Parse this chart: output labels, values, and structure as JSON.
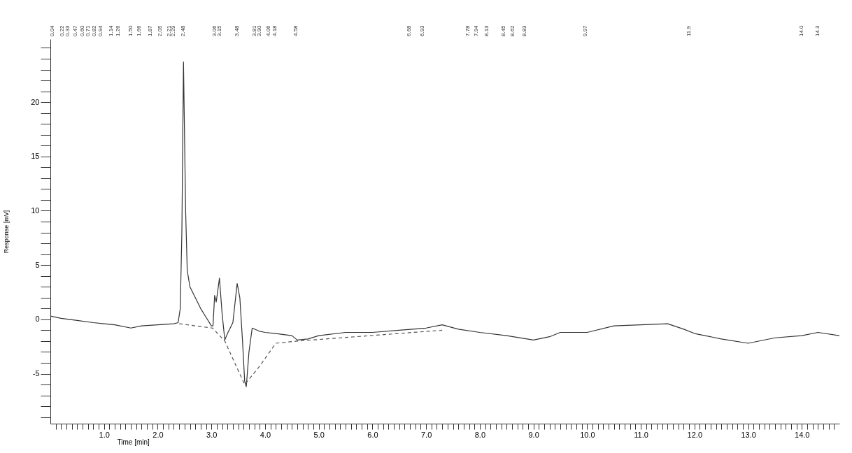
{
  "chart_data": {
    "type": "line",
    "xlabel": "Time [min]",
    "ylabel": "Response [mV]",
    "xlim": [
      0,
      14.7
    ],
    "ylim": [
      -9.6,
      25.8
    ],
    "grid": false,
    "marker": "none",
    "xticks": [
      {
        "value": 0.1,
        "label": null
      },
      {
        "value": 0.2,
        "label": null
      },
      {
        "value": 0.3,
        "label": null
      },
      {
        "value": 0.4,
        "label": null
      },
      {
        "value": 0.5,
        "label": null
      },
      {
        "value": 0.6,
        "label": null
      },
      {
        "value": 0.7,
        "label": null
      },
      {
        "value": 0.8,
        "label": null
      },
      {
        "value": 0.9,
        "label": null
      },
      {
        "value": 1,
        "label": "1.0"
      },
      {
        "value": 1.1,
        "label": null
      },
      {
        "value": 1.2,
        "label": null
      },
      {
        "value": 1.3,
        "label": null
      },
      {
        "value": 1.4,
        "label": null
      },
      {
        "value": 1.5,
        "label": null
      },
      {
        "value": 1.6,
        "label": null
      },
      {
        "value": 1.7,
        "label": null
      },
      {
        "value": 1.8,
        "label": null
      },
      {
        "value": 1.9,
        "label": null
      },
      {
        "value": 2,
        "label": "2.0"
      },
      {
        "value": 2.1,
        "label": null
      },
      {
        "value": 2.2,
        "label": null
      },
      {
        "value": 2.3,
        "label": null
      },
      {
        "value": 2.4,
        "label": null
      },
      {
        "value": 2.5,
        "label": null
      },
      {
        "value": 2.6,
        "label": null
      },
      {
        "value": 2.7,
        "label": null
      },
      {
        "value": 2.8,
        "label": null
      },
      {
        "value": 2.9,
        "label": null
      },
      {
        "value": 3,
        "label": "3.0"
      },
      {
        "value": 3.1,
        "label": null
      },
      {
        "value": 3.2,
        "label": null
      },
      {
        "value": 3.3,
        "label": null
      },
      {
        "value": 3.4,
        "label": null
      },
      {
        "value": 3.5,
        "label": null
      },
      {
        "value": 3.6,
        "label": null
      },
      {
        "value": 3.7,
        "label": null
      },
      {
        "value": 3.8,
        "label": null
      },
      {
        "value": 3.9,
        "label": null
      },
      {
        "value": 4,
        "label": "4.0"
      },
      {
        "value": 4.1,
        "label": null
      },
      {
        "value": 4.2,
        "label": null
      },
      {
        "value": 4.3,
        "label": null
      },
      {
        "value": 4.4,
        "label": null
      },
      {
        "value": 4.5,
        "label": null
      },
      {
        "value": 4.6,
        "label": null
      },
      {
        "value": 4.7,
        "label": null
      },
      {
        "value": 4.8,
        "label": null
      },
      {
        "value": 4.9,
        "label": null
      },
      {
        "value": 5,
        "label": "5.0"
      },
      {
        "value": 5.1,
        "label": null
      },
      {
        "value": 5.2,
        "label": null
      },
      {
        "value": 5.3,
        "label": null
      },
      {
        "value": 5.4,
        "label": null
      },
      {
        "value": 5.5,
        "label": null
      },
      {
        "value": 5.6,
        "label": null
      },
      {
        "value": 5.7,
        "label": null
      },
      {
        "value": 5.8,
        "label": null
      },
      {
        "value": 5.9,
        "label": null
      },
      {
        "value": 6,
        "label": "6.0"
      },
      {
        "value": 6.1,
        "label": null
      },
      {
        "value": 6.2,
        "label": null
      },
      {
        "value": 6.3,
        "label": null
      },
      {
        "value": 6.4,
        "label": null
      },
      {
        "value": 6.5,
        "label": null
      },
      {
        "value": 6.6,
        "label": null
      },
      {
        "value": 6.7,
        "label": null
      },
      {
        "value": 6.8,
        "label": null
      },
      {
        "value": 6.9,
        "label": null
      },
      {
        "value": 7,
        "label": "7.0"
      },
      {
        "value": 7.1,
        "label": null
      },
      {
        "value": 7.2,
        "label": null
      },
      {
        "value": 7.3,
        "label": null
      },
      {
        "value": 7.4,
        "label": null
      },
      {
        "value": 7.5,
        "label": null
      },
      {
        "value": 7.6,
        "label": null
      },
      {
        "value": 7.7,
        "label": null
      },
      {
        "value": 7.8,
        "label": null
      },
      {
        "value": 7.9,
        "label": null
      },
      {
        "value": 8,
        "label": "8.0"
      },
      {
        "value": 8.1,
        "label": null
      },
      {
        "value": 8.2,
        "label": null
      },
      {
        "value": 8.3,
        "label": null
      },
      {
        "value": 8.4,
        "label": null
      },
      {
        "value": 8.5,
        "label": null
      },
      {
        "value": 8.6,
        "label": null
      },
      {
        "value": 8.7,
        "label": null
      },
      {
        "value": 8.8,
        "label": null
      },
      {
        "value": 8.9,
        "label": null
      },
      {
        "value": 9,
        "label": "9.0"
      },
      {
        "value": 9.1,
        "label": null
      },
      {
        "value": 9.2,
        "label": null
      },
      {
        "value": 9.3,
        "label": null
      },
      {
        "value": 9.4,
        "label": null
      },
      {
        "value": 9.5,
        "label": null
      },
      {
        "value": 9.6,
        "label": null
      },
      {
        "value": 9.7,
        "label": null
      },
      {
        "value": 9.8,
        "label": null
      },
      {
        "value": 9.9,
        "label": null
      },
      {
        "value": 10,
        "label": "10.0"
      },
      {
        "value": 10.1,
        "label": null
      },
      {
        "value": 10.2,
        "label": null
      },
      {
        "value": 10.3,
        "label": null
      },
      {
        "value": 10.4,
        "label": null
      },
      {
        "value": 10.5,
        "label": null
      },
      {
        "value": 10.6,
        "label": null
      },
      {
        "value": 10.7,
        "label": null
      },
      {
        "value": 10.8,
        "label": null
      },
      {
        "value": 10.9,
        "label": null
      },
      {
        "value": 11,
        "label": "11.0"
      },
      {
        "value": 11.1,
        "label": null
      },
      {
        "value": 11.2,
        "label": null
      },
      {
        "value": 11.3,
        "label": null
      },
      {
        "value": 11.4,
        "label": null
      },
      {
        "value": 11.5,
        "label": null
      },
      {
        "value": 11.6,
        "label": null
      },
      {
        "value": 11.7,
        "label": null
      },
      {
        "value": 11.8,
        "label": null
      },
      {
        "value": 11.9,
        "label": null
      },
      {
        "value": 12,
        "label": "12.0"
      },
      {
        "value": 12.1,
        "label": null
      },
      {
        "value": 12.2,
        "label": null
      },
      {
        "value": 12.3,
        "label": null
      },
      {
        "value": 12.4,
        "label": null
      },
      {
        "value": 12.5,
        "label": null
      },
      {
        "value": 12.6,
        "label": null
      },
      {
        "value": 12.7,
        "label": null
      },
      {
        "value": 12.8,
        "label": null
      },
      {
        "value": 12.9,
        "label": null
      },
      {
        "value": 13,
        "label": "13.0"
      },
      {
        "value": 13.1,
        "label": null
      },
      {
        "value": 13.2,
        "label": null
      },
      {
        "value": 13.3,
        "label": null
      },
      {
        "value": 13.4,
        "label": null
      },
      {
        "value": 13.5,
        "label": null
      },
      {
        "value": 13.6,
        "label": null
      },
      {
        "value": 13.7,
        "label": null
      },
      {
        "value": 13.8,
        "label": null
      },
      {
        "value": 13.9,
        "label": null
      },
      {
        "value": 14,
        "label": "14.0"
      },
      {
        "value": 14.1,
        "label": null
      },
      {
        "value": 14.2,
        "label": null
      },
      {
        "value": 14.3,
        "label": null
      },
      {
        "value": 14.4,
        "label": null
      },
      {
        "value": 14.5,
        "label": null
      },
      {
        "value": 14.6,
        "label": null
      }
    ],
    "yticks": [
      {
        "value": -9,
        "label": null
      },
      {
        "value": -8,
        "label": null
      },
      {
        "value": -7,
        "label": null
      },
      {
        "value": -6,
        "label": null
      },
      -5,
      {
        "value": -4,
        "label": null
      },
      {
        "value": -3,
        "label": null
      },
      {
        "value": -2,
        "label": null
      },
      {
        "value": -1,
        "label": null
      },
      0,
      {
        "value": 1,
        "label": null
      },
      {
        "value": 2,
        "label": null
      },
      {
        "value": 3,
        "label": null
      },
      {
        "value": 4,
        "label": null
      },
      5,
      {
        "value": 6,
        "label": null
      },
      {
        "value": 7,
        "label": null
      },
      {
        "value": 8,
        "label": null
      },
      {
        "value": 9,
        "label": null
      },
      10,
      {
        "value": 11,
        "label": null
      },
      {
        "value": 12,
        "label": null
      },
      {
        "value": 13,
        "label": null
      },
      {
        "value": 14,
        "label": null
      },
      15,
      {
        "value": 16,
        "label": null
      },
      {
        "value": 17,
        "label": null
      },
      {
        "value": 18,
        "label": null
      },
      {
        "value": 19,
        "label": null
      },
      20,
      {
        "value": 21,
        "label": null
      },
      {
        "value": 22,
        "label": null
      },
      {
        "value": 23,
        "label": null
      },
      {
        "value": 24,
        "label": null
      },
      {
        "value": 25,
        "label": null
      }
    ],
    "series": [
      {
        "type": "line",
        "color": "#333333",
        "line_style": "solid",
        "x": [
          0,
          0.2,
          0.5,
          0.8,
          1.0,
          1.2,
          1.5,
          1.7,
          2.0,
          2.3,
          2.38,
          2.42,
          2.45,
          2.48,
          2.52,
          2.55,
          2.6,
          2.7,
          2.8,
          2.9,
          3.0,
          3.03,
          3.06,
          3.09,
          3.15,
          3.2,
          3.25,
          3.3,
          3.4,
          3.48,
          3.53,
          3.58,
          3.62,
          3.65,
          3.7,
          3.76,
          3.9,
          4.0,
          4.2,
          4.5,
          4.6,
          4.8,
          5.0,
          5.5,
          6.0,
          6.5,
          7.0,
          7.3,
          7.6,
          8.0,
          8.5,
          9.0,
          9.3,
          9.5,
          10.0,
          10.5,
          11.0,
          11.5,
          11.8,
          12.0,
          12.5,
          13.0,
          13.5,
          14.0,
          14.3,
          14.7
        ],
        "values": [
          0.3,
          0.1,
          -0.1,
          -0.3,
          -0.4,
          -0.5,
          -0.8,
          -0.6,
          -0.5,
          -0.4,
          -0.3,
          1.0,
          8,
          23.7,
          10,
          4.5,
          3,
          2,
          1,
          0.2,
          -0.6,
          -0.6,
          2.2,
          1.6,
          3.8,
          0.5,
          -1.9,
          -1.3,
          -0.3,
          3.3,
          2,
          -2,
          -5.7,
          -6.2,
          -3,
          -0.8,
          -1.1,
          -1.2,
          -1.3,
          -1.5,
          -1.9,
          -1.8,
          -1.5,
          -1.2,
          -1.2,
          -1.0,
          -0.8,
          -0.5,
          -0.9,
          -1.2,
          -1.5,
          -1.9,
          -1.6,
          -1.2,
          -1.2,
          -0.6,
          -0.5,
          -0.4,
          -0.9,
          -1.3,
          -1.8,
          -2.2,
          -1.7,
          -1.5,
          -1.2,
          -1.5
        ]
      },
      {
        "type": "line",
        "color": "#555555",
        "line_style": "dashed",
        "x": [
          2.4,
          3.02,
          3.25,
          3.62,
          3.9,
          4.2,
          4.6,
          7.3
        ],
        "values": [
          -0.4,
          -0.8,
          -2.0,
          -6.0,
          -4.3,
          -2.2,
          -2.0,
          -1.0
        ]
      }
    ],
    "annotations": [
      "0.04",
      "0.22",
      "0.33",
      "0.47",
      "0.60",
      "0.71",
      "0.82",
      "0.94",
      "1.14",
      "1.26",
      "1.50",
      "1.66",
      "1.87",
      "2.05",
      "2.21",
      "2.29",
      "2.48",
      "3.06",
      "3.15",
      "3.48",
      "3.81",
      "3.90",
      "4.06",
      "4.18",
      "4.58",
      "6.68",
      "6.93",
      "7.78",
      "7.94",
      "8.13",
      "8.45",
      "8.62",
      "8.83",
      "9.97",
      "11.9",
      "14.0",
      "14.3"
    ]
  }
}
